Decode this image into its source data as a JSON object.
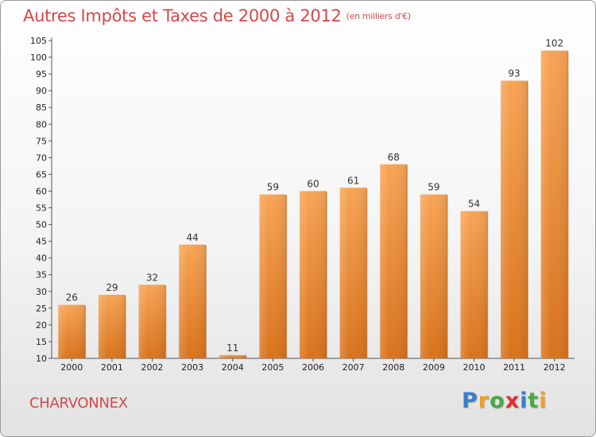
{
  "title": "Autres Impôts et Taxes de 2000 à 2012",
  "unit_note": "(en milliers d'€)",
  "commune": "CHARVONNEX",
  "logo": {
    "text": "Proxiti",
    "letters": [
      "P",
      "r",
      "o",
      "x",
      "i",
      "t",
      "i"
    ],
    "colors": [
      "#3a7fc8",
      "#f0a020",
      "#48a848",
      "#e03030",
      "#3a7fc8",
      "#48a848",
      "#f0a020"
    ]
  },
  "colors": {
    "title": "#d4484a",
    "bar_light": "#f7a455",
    "bar_dark": "#d9731c"
  },
  "chart_data": {
    "type": "bar",
    "categories": [
      "2000",
      "2001",
      "2002",
      "2003",
      "2004",
      "2005",
      "2006",
      "2007",
      "2008",
      "2009",
      "2010",
      "2011",
      "2012"
    ],
    "values": [
      26,
      29,
      32,
      44,
      11,
      59,
      60,
      61,
      68,
      59,
      54,
      93,
      102
    ],
    "ylim": [
      10,
      105
    ],
    "yticks": [
      10,
      15,
      20,
      25,
      30,
      35,
      40,
      45,
      50,
      55,
      60,
      65,
      70,
      75,
      80,
      85,
      90,
      95,
      100,
      105
    ],
    "grid": false,
    "title": "Autres Impôts et Taxes de 2000 à 2012",
    "xlabel": "",
    "ylabel": ""
  }
}
